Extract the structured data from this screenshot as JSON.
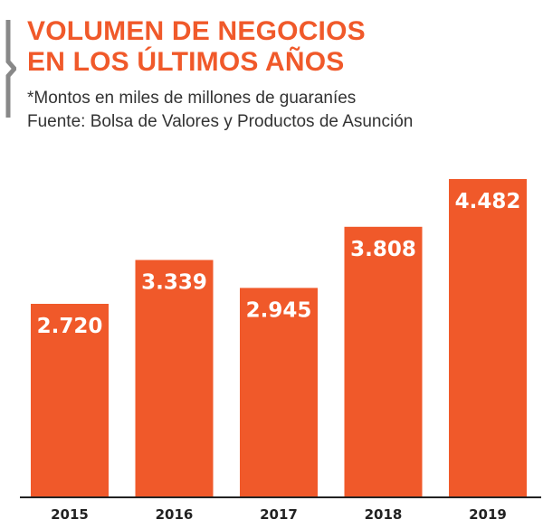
{
  "colors": {
    "accent": "#f0592a",
    "rule": "#888888"
  },
  "header": {
    "title_line1": "VOLUMEN DE NEGOCIOS",
    "title_line2": "EN LOS ÚLTIMOS AÑOS",
    "note": "*Montos en miles de millones de guaraníes",
    "source": "Fuente: Bolsa de Valores y Productos de Asunción"
  },
  "chart_data": {
    "type": "bar",
    "categories": [
      "2015",
      "2016",
      "2017",
      "2018",
      "2019"
    ],
    "values": [
      2720,
      3339,
      2945,
      3808,
      4482
    ],
    "value_labels": [
      "2.720",
      "3.339",
      "2.945",
      "3.808",
      "4.482"
    ],
    "title": "VOLUMEN DE NEGOCIOS EN LOS ÚLTIMOS AÑOS",
    "subtitle": "*Montos en miles de millones de guaraníes",
    "xlabel": "",
    "ylabel": "",
    "ylim": [
      0,
      4482
    ],
    "grid": false,
    "legend": "none"
  }
}
